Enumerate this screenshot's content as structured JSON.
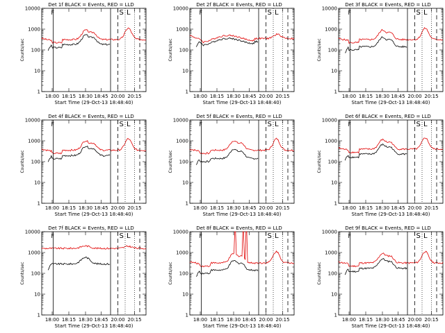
{
  "colors": {
    "background": "#ffffff",
    "axes": "#000000",
    "events": "#000000",
    "lld": "#e00000"
  },
  "chart_data": [
    {
      "type": "line",
      "title": "Det 1f BLACK = Events, RED = LLD",
      "xlabel": "Start Time (29-Oct-13 18:48:40)",
      "ylabel": "Counts/sec",
      "ylog": true,
      "ylim": [
        1,
        10000
      ],
      "yticks": [
        "1",
        "10",
        "100",
        "1000",
        "10000"
      ],
      "xticks": [
        "18:00",
        "18:15",
        "18:30",
        "18:45",
        "20:00",
        "20:15"
      ],
      "profile": "dip",
      "events_ratio": 0.58,
      "lld_offset": 0,
      "spikes": [],
      "markers": {
        "solid": [
          0.11,
          0.66
        ],
        "dashed": [
          0.73,
          0.94
        ],
        "dotted": [
          0.8,
          0.89
        ]
      },
      "flags": [
        "S",
        "L"
      ],
      "series": [
        {
          "name": "Events"
        },
        {
          "name": "LLD"
        }
      ]
    },
    {
      "type": "line",
      "title": "Det 2f BLACK = Events, RED = LLD",
      "xlabel": "Start Time (29-Oct-13 18:48:40)",
      "ylabel": "Counts/sec",
      "ylog": true,
      "ylim": [
        1,
        10000
      ],
      "yticks": [
        "1",
        "10",
        "100",
        "1000",
        "10000"
      ],
      "xticks": [
        "18:00",
        "18:15",
        "18:30",
        "18:45",
        "20:00",
        "20:15"
      ],
      "profile": "smooth",
      "events_ratio": 0.72,
      "lld_offset": 0,
      "spikes": [],
      "markers": {
        "solid": [
          0.11,
          0.66
        ],
        "dashed": [
          0.73,
          0.94
        ],
        "dotted": [
          0.8,
          0.89
        ]
      },
      "flags": [
        "S",
        "L"
      ],
      "series": [
        {
          "name": "Events"
        },
        {
          "name": "LLD"
        }
      ]
    },
    {
      "type": "line",
      "title": "Det 3f BLACK = Events, RED = LLD",
      "xlabel": "Start Time (29-Oct-13 18:48:40)",
      "ylabel": "Counts/sec",
      "ylog": true,
      "ylim": [
        1,
        10000
      ],
      "yticks": [
        "1",
        "10",
        "100",
        "1000",
        "10000"
      ],
      "xticks": [
        "18:00",
        "18:15",
        "18:30",
        "18:45",
        "20:00",
        "20:15"
      ],
      "profile": "dip",
      "events_ratio": 0.45,
      "lld_offset": 0,
      "spikes": [],
      "markers": {
        "solid": [
          0.11,
          0.66
        ],
        "dashed": [
          0.73,
          0.94
        ],
        "dotted": [
          0.8,
          0.89
        ]
      },
      "flags": [
        "S",
        "L"
      ],
      "series": [
        {
          "name": "Events"
        },
        {
          "name": "LLD"
        }
      ]
    },
    {
      "type": "line",
      "title": "Det 4f BLACK = Events, RED = LLD",
      "xlabel": "Start Time (29-Oct-13 18:48:40)",
      "ylabel": "Counts/sec",
      "ylog": true,
      "ylim": [
        1,
        10000
      ],
      "yticks": [
        "1",
        "10",
        "100",
        "1000",
        "10000"
      ],
      "xticks": [
        "18:00",
        "18:15",
        "18:30",
        "18:45",
        "20:00",
        "20:15"
      ],
      "profile": "dip",
      "events_ratio": 0.55,
      "lld_offset": 0.05,
      "spikes": [],
      "markers": {
        "solid": [
          0.11,
          0.66
        ],
        "dashed": [
          0.73,
          0.94
        ],
        "dotted": [
          0.8,
          0.89
        ]
      },
      "flags": [
        "S",
        "L"
      ],
      "series": [
        {
          "name": "Events"
        },
        {
          "name": "LLD"
        }
      ]
    },
    {
      "type": "line",
      "title": "Det 5f BLACK = Events, RED = LLD",
      "xlabel": "Start Time (29-Oct-13 18:48:40)",
      "ylabel": "Counts/sec",
      "ylog": true,
      "ylim": [
        1,
        10000
      ],
      "yticks": [
        "1",
        "10",
        "100",
        "1000",
        "10000"
      ],
      "xticks": [
        "18:00",
        "18:15",
        "18:30",
        "18:45",
        "20:00",
        "20:15"
      ],
      "profile": "dip",
      "events_ratio": 0.4,
      "lld_offset": 0.05,
      "spikes": [],
      "markers": {
        "solid": [
          0.11,
          0.66
        ],
        "dashed": [
          0.73,
          0.94
        ],
        "dotted": [
          0.8,
          0.89
        ]
      },
      "flags": [
        "S",
        "L"
      ],
      "series": [
        {
          "name": "Events"
        },
        {
          "name": "LLD"
        }
      ]
    },
    {
      "type": "line",
      "title": "Det 6f BLACK = Events, RED = LLD",
      "xlabel": "Start Time (29-Oct-13 18:48:40)",
      "ylabel": "Counts/sec",
      "ylog": true,
      "ylim": [
        1,
        10000
      ],
      "yticks": [
        "1",
        "10",
        "100",
        "1000",
        "10000"
      ],
      "xticks": [
        "18:00",
        "18:15",
        "18:30",
        "18:45",
        "20:00",
        "20:15"
      ],
      "profile": "dip",
      "events_ratio": 0.58,
      "lld_offset": 0.1,
      "spikes": [],
      "markers": {
        "solid": [
          0.11,
          0.66
        ],
        "dashed": [
          0.73,
          0.94
        ],
        "dotted": [
          0.8,
          0.89
        ]
      },
      "flags": [
        "S",
        "L"
      ],
      "series": [
        {
          "name": "Events"
        },
        {
          "name": "LLD"
        }
      ]
    },
    {
      "type": "line",
      "title": "Det 7f BLACK = Events, RED = LLD",
      "xlabel": "Start Time (29-Oct-13 18:48:40)",
      "ylabel": "Counts/sec",
      "ylog": true,
      "ylim": [
        1,
        10000
      ],
      "yticks": [
        "1",
        "10",
        "100",
        "1000",
        "10000"
      ],
      "xticks": [
        "18:00",
        "18:15",
        "18:30",
        "18:45",
        "20:00",
        "20:15"
      ],
      "profile": "flat",
      "events_ratio": 0.22,
      "lld_offset": 0.3,
      "spikes": [],
      "markers": {
        "solid": [
          0.11,
          0.66
        ],
        "dashed": [
          0.73,
          0.94
        ],
        "dotted": [
          0.8,
          0.89
        ]
      },
      "flags": [
        "S",
        "L"
      ],
      "series": [
        {
          "name": "Events"
        },
        {
          "name": "LLD"
        }
      ]
    },
    {
      "type": "line",
      "title": "Det 8f BLACK = Events, RED = LLD",
      "xlabel": "Start Time (29-Oct-13 18:48:40)",
      "ylabel": "Counts/sec",
      "ylog": true,
      "ylim": [
        1,
        10000
      ],
      "yticks": [
        "1",
        "10",
        "100",
        "1000",
        "10000"
      ],
      "xticks": [
        "18:00",
        "18:15",
        "18:30",
        "18:45",
        "20:00",
        "20:15"
      ],
      "profile": "dip",
      "events_ratio": 0.45,
      "lld_offset": 0,
      "spikes": [
        0.43,
        0.51,
        0.54
      ],
      "markers": {
        "solid": [
          0.11,
          0.66
        ],
        "dashed": [
          0.73,
          0.94
        ],
        "dotted": [
          0.8,
          0.89
        ]
      },
      "flags": [
        "S",
        "L"
      ],
      "series": [
        {
          "name": "Events"
        },
        {
          "name": "LLD"
        }
      ]
    },
    {
      "type": "line",
      "title": "Det 9f BLACK = Events, RED = LLD",
      "xlabel": "Start Time (29-Oct-13 18:48:40)",
      "ylabel": "Counts/sec",
      "ylog": true,
      "ylim": [
        1,
        10000
      ],
      "yticks": [
        "1",
        "10",
        "100",
        "1000",
        "10000"
      ],
      "xticks": [
        "18:00",
        "18:15",
        "18:30",
        "18:45",
        "20:00",
        "20:15"
      ],
      "profile": "dip",
      "events_ratio": 0.55,
      "lld_offset": 0,
      "spikes": [],
      "markers": {
        "solid": [
          0.11,
          0.66
        ],
        "dashed": [
          0.73,
          0.94
        ],
        "dotted": [
          0.8,
          0.89
        ]
      },
      "flags": [
        "S",
        "L"
      ],
      "series": [
        {
          "name": "Events"
        },
        {
          "name": "LLD"
        }
      ]
    }
  ]
}
